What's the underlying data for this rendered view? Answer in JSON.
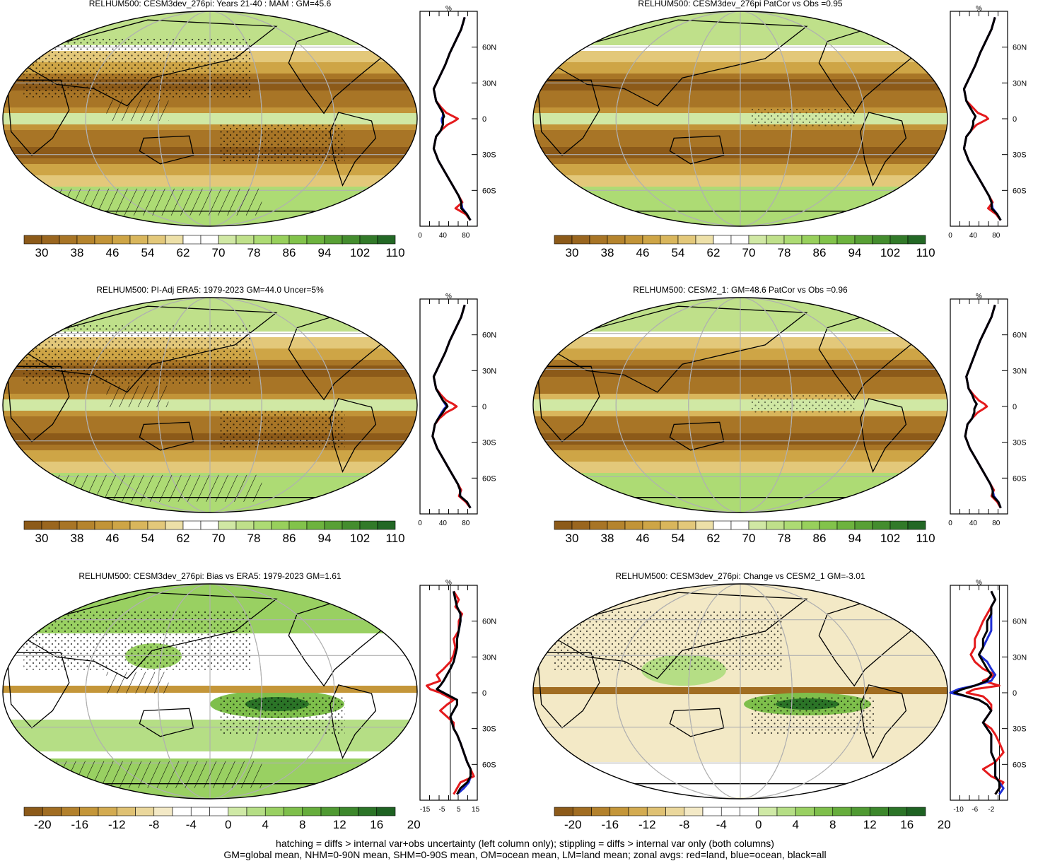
{
  "colors": {
    "abs_palette": [
      "#8c5a19",
      "#9a661f",
      "#a87526",
      "#b5842d",
      "#c29438",
      "#cea546",
      "#d9b65c",
      "#e3c87a",
      "#ede0a8",
      "#ffffff",
      "#ffffff",
      "#d0e8a4",
      "#bfe08a",
      "#addb74",
      "#98d05c",
      "#82c34b",
      "#6db33e",
      "#58a035",
      "#448d2e",
      "#327a29",
      "#236825"
    ],
    "diff_palette": [
      "#8c5a19",
      "#a16d22",
      "#b3812c",
      "#c49639",
      "#d3ab51",
      "#dfc173",
      "#ead79c",
      "#f3e9c6",
      "#ffffff",
      "#ffffff",
      "#ffffff",
      "#cfe9a6",
      "#b5de85",
      "#99d062",
      "#7ebf4b",
      "#66ad3c",
      "#4f9a32",
      "#3c872b",
      "#2b7427",
      "#1e6222"
    ],
    "land_mask": "#c8c8c8",
    "land_line": "#e41a1c",
    "ocean_line": "#1f2fd6",
    "all_line": "#000000"
  },
  "chart_data": [
    {
      "type": "heatmap",
      "title": "RELHUM500: CESM3dev_276pi: Years 21-40 : MAM : GM=45.6",
      "colorbar": {
        "ticks": [
          "30",
          "38",
          "46",
          "54",
          "62",
          "70",
          "78",
          "86",
          "94",
          "102",
          "110"
        ]
      },
      "zonal": {
        "unit": "%",
        "xticks": [
          "0",
          "40",
          "80"
        ],
        "xlim": [
          0,
          100
        ],
        "lat_labels": [
          "60N",
          "30N",
          "0",
          "30S",
          "60S"
        ],
        "lat": [
          85,
          75,
          65,
          55,
          45,
          35,
          25,
          15,
          10,
          5,
          2,
          0,
          -2,
          -5,
          -10,
          -15,
          -25,
          -35,
          -45,
          -55,
          -65,
          -70,
          -75,
          -80,
          -85
        ],
        "land": [
          78,
          72,
          62,
          52,
          44,
          34,
          24,
          28,
          36,
          46,
          58,
          66,
          60,
          48,
          36,
          28,
          24,
          32,
          44,
          56,
          68,
          74,
          62,
          80,
          88
        ],
        "ocean": [
          78,
          72,
          62,
          52,
          44,
          34,
          24,
          28,
          34,
          40,
          40,
          38,
          38,
          40,
          36,
          28,
          24,
          32,
          44,
          56,
          68,
          72,
          74,
          82,
          88
        ],
        "all": [
          78,
          72,
          62,
          52,
          44,
          34,
          24,
          28,
          34,
          40,
          42,
          40,
          40,
          40,
          36,
          28,
          24,
          32,
          44,
          56,
          68,
          72,
          72,
          82,
          88
        ]
      }
    },
    {
      "type": "heatmap",
      "title": "RELHUM500: CESM3dev_276pi PatCor vs Obs =0.95",
      "colorbar": {
        "ticks": [
          "30",
          "38",
          "46",
          "54",
          "62",
          "70",
          "78",
          "86",
          "94",
          "102",
          "110"
        ]
      },
      "zonal": {
        "unit": "%",
        "xticks": [
          "0",
          "40",
          "80"
        ],
        "xlim": [
          0,
          100
        ],
        "lat_labels": [
          "60N",
          "30N",
          "0",
          "30S",
          "60S"
        ],
        "lat": [
          85,
          75,
          65,
          55,
          45,
          35,
          25,
          15,
          10,
          5,
          2,
          0,
          -2,
          -5,
          -10,
          -15,
          -25,
          -35,
          -45,
          -55,
          -65,
          -70,
          -75,
          -80,
          -85
        ],
        "land": [
          78,
          72,
          62,
          52,
          44,
          34,
          24,
          28,
          38,
          48,
          62,
          66,
          58,
          46,
          36,
          28,
          24,
          32,
          44,
          56,
          68,
          74,
          66,
          80,
          88
        ],
        "ocean": [
          78,
          72,
          62,
          52,
          44,
          34,
          24,
          28,
          34,
          40,
          44,
          42,
          40,
          40,
          36,
          28,
          24,
          32,
          44,
          56,
          68,
          72,
          74,
          82,
          88
        ],
        "all": [
          78,
          72,
          62,
          52,
          44,
          34,
          24,
          28,
          34,
          40,
          44,
          42,
          40,
          40,
          36,
          28,
          24,
          32,
          44,
          56,
          68,
          72,
          72,
          82,
          88
        ]
      }
    },
    {
      "type": "heatmap",
      "title": "RELHUM500: PI-Adj ERA5: 1979-2023 GM=44.0 Uncer=5%",
      "colorbar": {
        "ticks": [
          "30",
          "38",
          "46",
          "54",
          "62",
          "70",
          "78",
          "86",
          "94",
          "102",
          "110"
        ]
      },
      "zonal": {
        "unit": "%",
        "xticks": [
          "0",
          "40",
          "80"
        ],
        "xlim": [
          0,
          100
        ],
        "lat_labels": [
          "60N",
          "30N",
          "0",
          "30S",
          "60S"
        ],
        "lat": [
          85,
          75,
          65,
          55,
          45,
          35,
          25,
          15,
          10,
          5,
          2,
          0,
          -2,
          -5,
          -10,
          -15,
          -25,
          -35,
          -45,
          -55,
          -65,
          -70,
          -75,
          -80,
          -85
        ],
        "land": [
          78,
          72,
          62,
          52,
          44,
          34,
          24,
          28,
          36,
          46,
          58,
          64,
          58,
          46,
          34,
          26,
          22,
          30,
          42,
          54,
          66,
          72,
          68,
          80,
          88
        ],
        "ocean": [
          78,
          72,
          62,
          52,
          44,
          34,
          24,
          28,
          34,
          40,
          44,
          46,
          42,
          38,
          32,
          26,
          22,
          30,
          42,
          54,
          66,
          70,
          70,
          82,
          88
        ],
        "all": [
          78,
          72,
          62,
          52,
          44,
          34,
          24,
          28,
          34,
          40,
          46,
          48,
          44,
          40,
          32,
          26,
          22,
          30,
          42,
          54,
          66,
          70,
          70,
          82,
          88
        ]
      }
    },
    {
      "type": "heatmap",
      "title": "RELHUM500: CESM2_1: GM=48.6 PatCor vs Obs =0.96",
      "colorbar": {
        "ticks": [
          "30",
          "38",
          "46",
          "54",
          "62",
          "70",
          "78",
          "86",
          "94",
          "102",
          "110"
        ]
      },
      "zonal": {
        "unit": "%",
        "xticks": [
          "0",
          "40",
          "80"
        ],
        "xlim": [
          0,
          100
        ],
        "lat_labels": [
          "60N",
          "30N",
          "0",
          "30S",
          "60S"
        ],
        "lat": [
          85,
          75,
          65,
          55,
          45,
          35,
          25,
          15,
          10,
          5,
          2,
          0,
          -2,
          -5,
          -10,
          -15,
          -25,
          -35,
          -45,
          -55,
          -65,
          -70,
          -75,
          -80,
          -85
        ],
        "land": [
          78,
          72,
          62,
          52,
          44,
          36,
          28,
          32,
          40,
          50,
          60,
          64,
          58,
          48,
          38,
          30,
          26,
          34,
          46,
          58,
          70,
          76,
          72,
          82,
          88
        ],
        "ocean": [
          78,
          72,
          62,
          52,
          44,
          36,
          28,
          32,
          38,
          42,
          46,
          44,
          42,
          42,
          38,
          30,
          26,
          34,
          46,
          58,
          70,
          74,
          76,
          84,
          88
        ],
        "all": [
          78,
          72,
          62,
          52,
          44,
          36,
          28,
          32,
          38,
          42,
          46,
          44,
          42,
          42,
          38,
          30,
          26,
          34,
          46,
          58,
          70,
          74,
          74,
          84,
          88
        ]
      }
    },
    {
      "type": "heatmap",
      "title": "RELHUM500: CESM3dev_276pi: Bias vs ERA5: 1979-2023 GM=1.61",
      "colorbar": {
        "ticks": [
          "-20",
          "-16",
          "-12",
          "-8",
          "-4",
          "0",
          "4",
          "8",
          "12",
          "16",
          "20"
        ]
      },
      "zonal": {
        "unit": "%",
        "xticks": [
          "-15",
          "-5",
          "5",
          "15"
        ],
        "xlim": [
          -18,
          16
        ],
        "lat_labels": [
          "60N",
          "30N",
          "0",
          "30S",
          "60S"
        ],
        "lat": [
          85,
          78,
          72,
          66,
          60,
          52,
          45,
          38,
          32,
          26,
          20,
          15,
          10,
          6,
          3,
          0,
          -3,
          -6,
          -10,
          -15,
          -20,
          -25,
          -30,
          -35,
          -42,
          -50,
          -58,
          -64,
          -70,
          -75,
          -80,
          -85
        ],
        "land": [
          2,
          5,
          3,
          7,
          5,
          5,
          2,
          3,
          2,
          0,
          -4,
          -8,
          -6,
          -14,
          -12,
          -6,
          -2,
          2,
          -2,
          -6,
          -2,
          2,
          2,
          4,
          6,
          8,
          10,
          12,
          14,
          6,
          4,
          2
        ],
        "ocean": [
          2,
          3,
          4,
          6,
          6,
          5,
          4,
          4,
          3,
          2,
          0,
          -2,
          -4,
          -6,
          -8,
          -4,
          0,
          4,
          4,
          2,
          0,
          1,
          2,
          4,
          6,
          8,
          10,
          12,
          12,
          11,
          8,
          4
        ],
        "all": [
          2,
          3,
          4,
          6,
          6,
          5,
          4,
          4,
          3,
          2,
          0,
          -2,
          -4,
          -6,
          -8,
          -4,
          0,
          4,
          4,
          2,
          0,
          1,
          2,
          4,
          6,
          8,
          10,
          12,
          12,
          10,
          6,
          4
        ]
      }
    },
    {
      "type": "heatmap",
      "title": "RELHUM500: CESM3dev_276pi: Change vs CESM2_1 GM=-3.01",
      "colorbar": {
        "ticks": [
          "-20",
          "-16",
          "-12",
          "-8",
          "-4",
          "0",
          "4",
          "8",
          "12",
          "16",
          "20"
        ]
      },
      "zonal": {
        "unit": "%",
        "xticks": [
          "-10",
          "-6",
          "-2"
        ],
        "xlim": [
          -12,
          2
        ],
        "lat_labels": [
          "60N",
          "30N",
          "0",
          "30S",
          "60S"
        ],
        "lat": [
          85,
          78,
          72,
          66,
          60,
          52,
          45,
          38,
          32,
          26,
          20,
          15,
          10,
          6,
          3,
          0,
          -3,
          -6,
          -10,
          -15,
          -20,
          -25,
          -30,
          -35,
          -42,
          -50,
          -58,
          -64,
          -70,
          -75,
          -80,
          -85
        ],
        "land": [
          -2,
          -1,
          -2,
          -3,
          -4,
          -5,
          -6,
          -6,
          -7,
          -6,
          -4,
          -1,
          -4,
          0,
          -6,
          -8,
          -4,
          -3,
          -2,
          -2,
          -3,
          -4,
          -2,
          -1,
          0,
          1,
          -1,
          -4,
          -2,
          1,
          0,
          -1
        ],
        "ocean": [
          -2,
          -1,
          -2,
          -2,
          -2,
          -2,
          -3,
          -4,
          -5,
          -3,
          -2,
          -1,
          -2,
          -6,
          -10,
          -12,
          -8,
          -5,
          -3,
          -2,
          -3,
          -4,
          -3,
          -2,
          -2,
          -2,
          -1,
          -1,
          -1,
          0,
          1,
          0
        ],
        "all": [
          -2,
          -1,
          -2,
          -2,
          -3,
          -3,
          -4,
          -4,
          -5,
          -4,
          -3,
          -2,
          -3,
          -6,
          -9,
          -11,
          -8,
          -5,
          -3,
          -2,
          -3,
          -4,
          -3,
          -2,
          -2,
          -2,
          -1,
          -1,
          -1,
          0,
          0,
          -1
        ]
      }
    }
  ],
  "footer": {
    "line1": "hatching = diffs > internal var+obs uncertainty (left column only); stippling = diffs > internal var only (both columns)",
    "line2": "GM=global mean, NHM=0-90N mean, SHM=0-90S mean, OM=ocean mean, LM=land mean; zonal avgs: red=land, blue=ocean, black=all"
  }
}
